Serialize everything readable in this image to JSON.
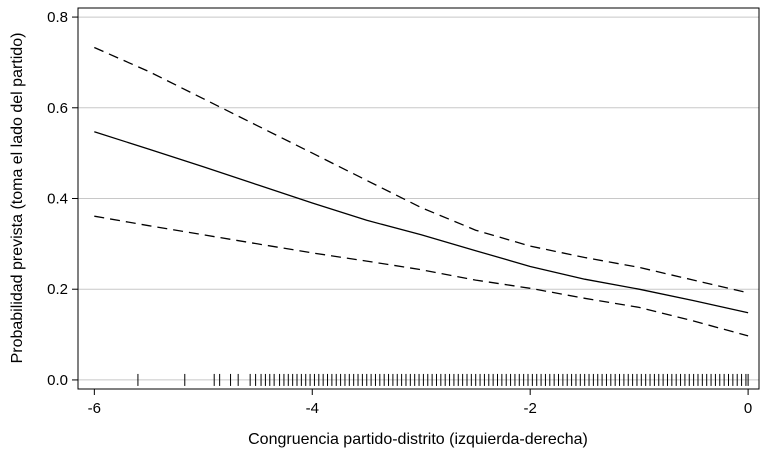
{
  "chart_data": {
    "type": "line",
    "title": "",
    "xlabel": "Congruencia partido-distrito (izquierda-derecha)",
    "ylabel": "Probabilidad prevista (toma el lado del partido)",
    "xlim": [
      -6.15,
      0.1
    ],
    "ylim": [
      -0.02,
      0.82
    ],
    "x_ticks": [
      -6,
      -4,
      -2,
      0
    ],
    "x_tick_labels": [
      "-6",
      "-4",
      "-2",
      "0"
    ],
    "y_ticks": [
      0.0,
      0.2,
      0.4,
      0.6,
      0.8
    ],
    "y_tick_labels": [
      "0.0",
      "0.2",
      "0.4",
      "0.6",
      "0.8"
    ],
    "grid": "horizontal",
    "series": [
      {
        "role": "estimate",
        "line_style": "solid",
        "x": [
          -6.0,
          -5.5,
          -5.0,
          -4.5,
          -4.0,
          -3.5,
          -3.0,
          -2.5,
          -2.0,
          -1.5,
          -1.0,
          -0.5,
          0.0
        ],
        "values": [
          0.547,
          0.509,
          0.47,
          0.43,
          0.39,
          0.352,
          0.32,
          0.285,
          0.25,
          0.222,
          0.2,
          0.175,
          0.148
        ]
      },
      {
        "role": "upper-bound",
        "line_style": "dashed",
        "x": [
          -6.0,
          -5.5,
          -5.0,
          -4.5,
          -4.0,
          -3.5,
          -3.0,
          -2.5,
          -2.0,
          -1.5,
          -1.0,
          -0.5,
          0.0
        ],
        "values": [
          0.733,
          0.68,
          0.62,
          0.56,
          0.5,
          0.44,
          0.38,
          0.33,
          0.295,
          0.27,
          0.248,
          0.22,
          0.192
        ]
      },
      {
        "role": "lower-bound",
        "line_style": "dashed",
        "x": [
          -6.0,
          -5.5,
          -5.0,
          -4.5,
          -4.0,
          -3.5,
          -3.0,
          -2.5,
          -2.0,
          -1.5,
          -1.0,
          -0.5,
          0.0
        ],
        "values": [
          0.361,
          0.34,
          0.32,
          0.3,
          0.28,
          0.262,
          0.243,
          0.22,
          0.202,
          0.18,
          0.16,
          0.13,
          0.097
        ]
      }
    ],
    "rug": {
      "y": 0.0,
      "x": [
        -5.6,
        -5.17,
        -4.9,
        -4.85,
        -4.75,
        -4.68,
        -4.57,
        -4.52,
        -4.47,
        -4.43,
        -4.39,
        -4.35,
        -4.3,
        -4.26,
        -4.22,
        -4.18,
        -4.14,
        -4.1,
        -4.06,
        -4.02,
        -3.98,
        -3.94,
        -3.9,
        -3.86,
        -3.82,
        -3.78,
        -3.74,
        -3.7,
        -3.66,
        -3.62,
        -3.58,
        -3.54,
        -3.5,
        -3.46,
        -3.42,
        -3.38,
        -3.34,
        -3.3,
        -3.26,
        -3.22,
        -3.18,
        -3.14,
        -3.1,
        -3.06,
        -3.02,
        -2.98,
        -2.94,
        -2.9,
        -2.86,
        -2.82,
        -2.78,
        -2.74,
        -2.7,
        -2.66,
        -2.62,
        -2.58,
        -2.54,
        -2.5,
        -2.46,
        -2.42,
        -2.38,
        -2.34,
        -2.3,
        -2.26,
        -2.22,
        -2.18,
        -2.14,
        -2.1,
        -2.06,
        -2.02,
        -1.98,
        -1.94,
        -1.9,
        -1.86,
        -1.82,
        -1.78,
        -1.74,
        -1.7,
        -1.66,
        -1.62,
        -1.58,
        -1.54,
        -1.5,
        -1.46,
        -1.42,
        -1.38,
        -1.34,
        -1.3,
        -1.26,
        -1.22,
        -1.18,
        -1.14,
        -1.1,
        -1.06,
        -1.02,
        -0.98,
        -0.94,
        -0.9,
        -0.86,
        -0.82,
        -0.78,
        -0.74,
        -0.7,
        -0.66,
        -0.62,
        -0.58,
        -0.54,
        -0.5,
        -0.46,
        -0.42,
        -0.38,
        -0.34,
        -0.3,
        -0.26,
        -0.22,
        -0.18,
        -0.14,
        -0.1,
        -0.06,
        -0.02,
        0.0
      ]
    }
  }
}
